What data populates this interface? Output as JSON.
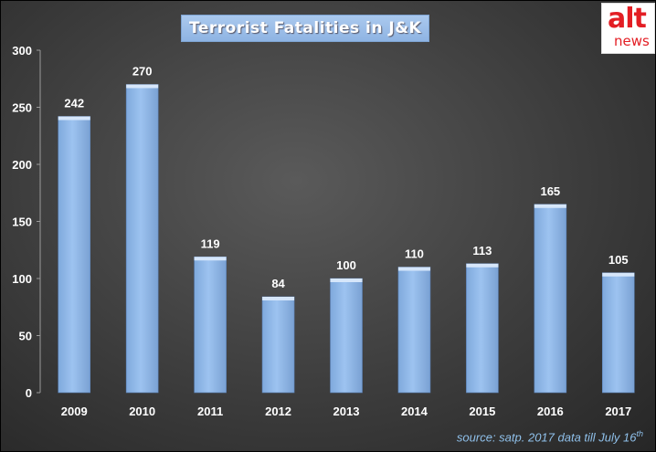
{
  "chart_data": {
    "type": "bar",
    "title": "Terrorist Fatalities in J&K",
    "categories": [
      "2009",
      "2010",
      "2011",
      "2012",
      "2013",
      "2014",
      "2015",
      "2016",
      "2017"
    ],
    "values": [
      242,
      270,
      119,
      84,
      100,
      110,
      113,
      165,
      105
    ],
    "data_labels": [
      "242",
      "270",
      "119",
      "84",
      "100",
      "110",
      "113",
      "165",
      "105"
    ],
    "yticks": [
      "0",
      "50",
      "100",
      "150",
      "200",
      "250",
      "300"
    ],
    "ylim": [
      0,
      300
    ],
    "xlabel": "",
    "ylabel": "",
    "grid": false,
    "legend": false,
    "bar_color": "#9dc3f0",
    "background_color": "#3d3d3d"
  },
  "logo": {
    "top": "alt",
    "bottom": "news",
    "color": "#e31e24"
  },
  "source": {
    "text": "source: satp. 2017 data till July 16",
    "superscript": "th"
  }
}
